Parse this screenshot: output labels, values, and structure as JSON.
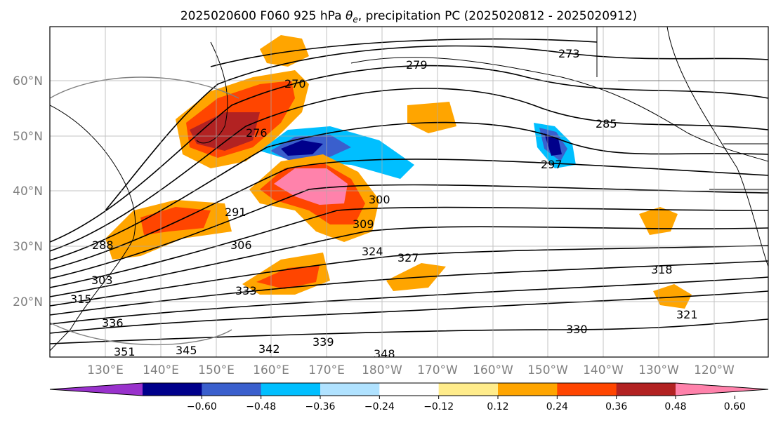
{
  "title_prefix": "2025020600 F060 925 hPa ",
  "title_theta": "θ",
  "title_sub": "e",
  "title_suffix": ", precipitation PC (2025020812 - 2025020912)",
  "lat_labels": [
    "60°N",
    "50°N",
    "40°N",
    "30°N",
    "20°N"
  ],
  "lon_labels": [
    "130°E",
    "140°E",
    "150°E",
    "160°E",
    "170°E",
    "180°W",
    "170°W",
    "160°W",
    "150°W",
    "140°W",
    "130°W",
    "120°W"
  ],
  "colorbar": {
    "colors": [
      "#9932cc",
      "#00008b",
      "#3a5fcd",
      "#00bfff",
      "#b0e2ff",
      "#ffffff",
      "#ffec8b",
      "#ffa500",
      "#ff4500",
      "#b22222",
      "#ff82ab"
    ],
    "tick_labels": [
      "−0.60",
      "−0.48",
      "−0.36",
      "−0.24",
      "−0.12",
      "0.12",
      "0.24",
      "0.36",
      "0.48",
      "0.60"
    ]
  },
  "contour_labels": [
    "273",
    "279",
    "285",
    "297",
    "300",
    "309",
    "318",
    "321",
    "324",
    "327",
    "330",
    "333",
    "336",
    "339",
    "342",
    "345",
    "348",
    "351",
    "288",
    "291",
    "303",
    "306",
    "315",
    "270",
    "276"
  ]
}
